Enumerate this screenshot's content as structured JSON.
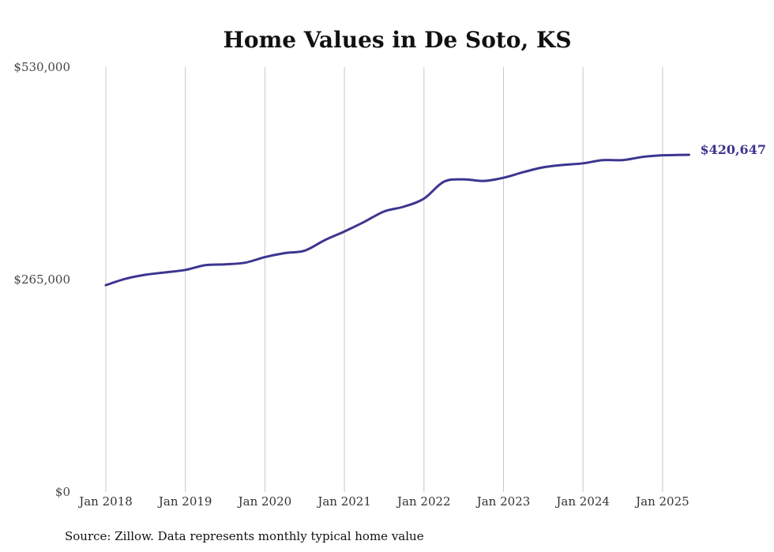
{
  "chart_data": {
    "type": "line",
    "title": "Home Values in De Soto, KS",
    "xlabel": "",
    "ylabel": "",
    "x_tick_labels": [
      "Jan 2018",
      "Jan 2019",
      "Jan 2020",
      "Jan 2021",
      "Jan 2022",
      "Jan 2023",
      "Jan 2024",
      "Jan 2025"
    ],
    "x_tick_dates": [
      "2018-01",
      "2019-01",
      "2020-01",
      "2021-01",
      "2022-01",
      "2023-01",
      "2024-01",
      "2025-01"
    ],
    "y_tick_labels": [
      "$0",
      "$265,000",
      "$530,000"
    ],
    "y_tick_values": [
      0,
      265000,
      530000
    ],
    "ylim": [
      0,
      530000
    ],
    "xlim": [
      "2018-01",
      "2025-05"
    ],
    "grid": "vertical",
    "line_color": "#3d3590",
    "series": [
      {
        "x": [
          "2018-01",
          "2018-04",
          "2018-07",
          "2018-10",
          "2019-01",
          "2019-04",
          "2019-07",
          "2019-10",
          "2020-01",
          "2020-04",
          "2020-07",
          "2020-10",
          "2021-01",
          "2021-04",
          "2021-07",
          "2021-10",
          "2022-01",
          "2022-04",
          "2022-07",
          "2022-10",
          "2023-01",
          "2023-04",
          "2023-07",
          "2023-10",
          "2024-01",
          "2024-04",
          "2024-07",
          "2024-10",
          "2025-01",
          "2025-05"
        ],
        "y": [
          258000,
          266000,
          271000,
          274000,
          277000,
          283000,
          284000,
          286000,
          293000,
          298000,
          301000,
          314000,
          325000,
          337000,
          350000,
          356000,
          366000,
          387000,
          390000,
          388000,
          392000,
          399000,
          405000,
          408000,
          410000,
          414000,
          414000,
          418000,
          420000,
          420647
        ]
      }
    ],
    "end_label": "$420,647"
  },
  "footer": {
    "source": "Source: Zillow. Data represents monthly typical home value"
  }
}
